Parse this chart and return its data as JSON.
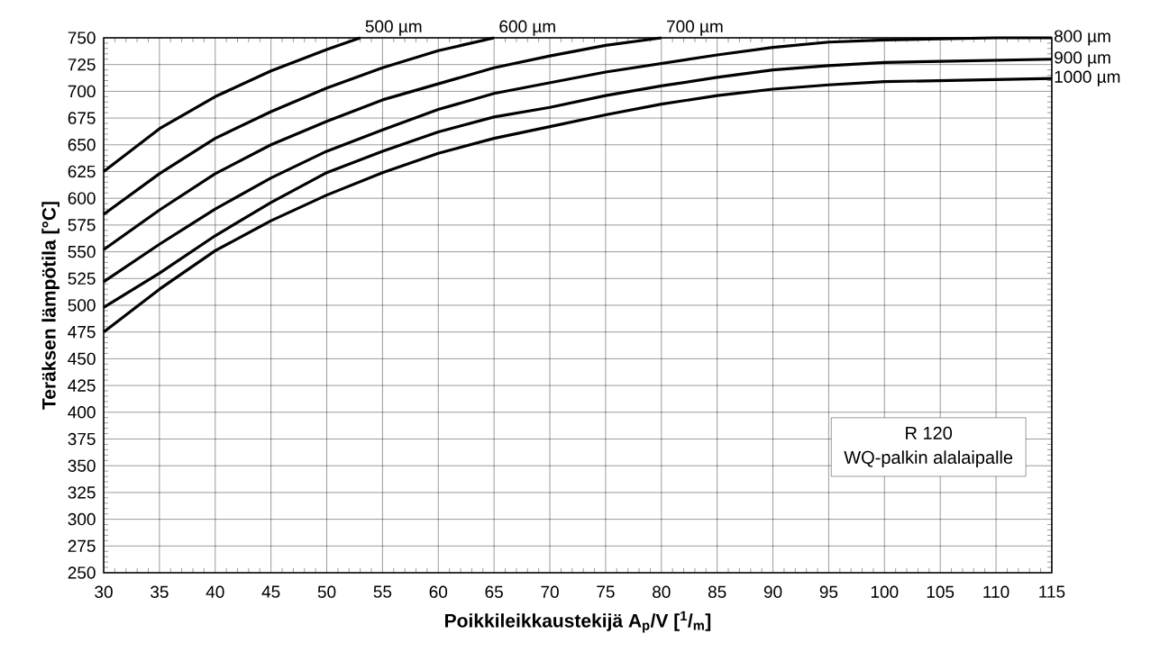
{
  "chart_data": {
    "type": "line",
    "xlabel": "Poikkileikkaustekijä A$_{p}$/V [$^{1}$/$_{m}$]",
    "ylabel": "Teräksen lämpötila [°C]",
    "xlim": [
      30,
      115
    ],
    "ylim": [
      250,
      750
    ],
    "xticks": [
      30,
      35,
      40,
      45,
      50,
      55,
      60,
      65,
      70,
      75,
      80,
      85,
      90,
      95,
      100,
      105,
      110,
      115
    ],
    "yticks": [
      250,
      275,
      300,
      325,
      350,
      375,
      400,
      425,
      450,
      475,
      500,
      525,
      550,
      575,
      600,
      625,
      650,
      675,
      700,
      725,
      750
    ],
    "grid": true,
    "legend": "right",
    "marker": "none",
    "line_style": "solid",
    "annotations": [
      "R 120",
      "WQ-palkin alalaipalle"
    ],
    "series": [
      {
        "name": "500 µm",
        "color": "#000000",
        "x": [
          30,
          35,
          40,
          45,
          50,
          53
        ],
        "values": [
          625,
          665,
          695,
          719,
          739,
          750
        ]
      },
      {
        "name": "600 µm",
        "color": "#000000",
        "x": [
          30,
          35,
          40,
          45,
          50,
          55,
          60,
          65
        ],
        "values": [
          585,
          623,
          656,
          681,
          703,
          722,
          738,
          750
        ]
      },
      {
        "name": "700 µm",
        "color": "#000000",
        "x": [
          30,
          35,
          40,
          45,
          50,
          55,
          60,
          65,
          70,
          75,
          80
        ],
        "values": [
          552,
          589,
          623,
          650,
          672,
          692,
          707,
          722,
          733,
          743,
          750
        ]
      },
      {
        "name": "800 µm",
        "color": "#000000",
        "x": [
          30,
          35,
          40,
          45,
          50,
          55,
          60,
          65,
          70,
          75,
          80,
          85,
          90,
          95,
          100,
          105,
          110,
          115
        ],
        "values": [
          522,
          557,
          590,
          619,
          644,
          664,
          683,
          698,
          708,
          718,
          726,
          734,
          741,
          746,
          748,
          749,
          750,
          750
        ]
      },
      {
        "name": "900 µm",
        "color": "#000000",
        "x": [
          30,
          35,
          40,
          45,
          50,
          55,
          60,
          65,
          70,
          75,
          80,
          85,
          90,
          95,
          100,
          105,
          110,
          115
        ],
        "values": [
          498,
          530,
          565,
          596,
          624,
          644,
          662,
          676,
          685,
          696,
          705,
          713,
          720,
          724,
          727,
          728,
          729,
          730
        ]
      },
      {
        "name": "1000 µm",
        "color": "#000000",
        "x": [
          30,
          35,
          40,
          45,
          50,
          55,
          60,
          65,
          70,
          75,
          80,
          85,
          90,
          95,
          100,
          105,
          110,
          115
        ],
        "values": [
          475,
          515,
          551,
          579,
          603,
          624,
          642,
          656,
          667,
          678,
          688,
          696,
          702,
          706,
          709,
          710,
          711,
          712
        ]
      }
    ]
  }
}
